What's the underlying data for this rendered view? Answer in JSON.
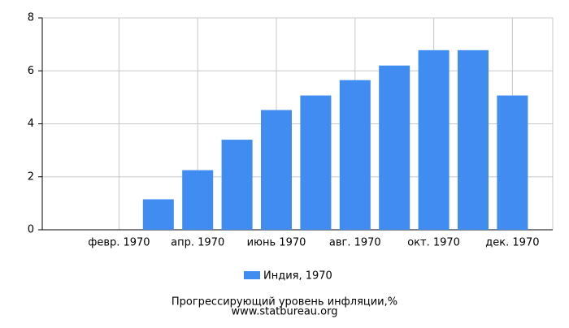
{
  "chart_data": {
    "type": "bar",
    "title": "Прогрессирующий уровень инфляции,%",
    "subtitle": "www.statbureau.org",
    "categories": [
      null,
      "февр. 1970",
      null,
      "апр. 1970",
      null,
      "июнь 1970",
      null,
      "авг. 1970",
      null,
      "окт. 1970",
      null,
      "дек. 1970"
    ],
    "series": [
      {
        "name": "Индия, 1970",
        "color": "#418cf0",
        "values": [
          0,
          0,
          1.15,
          2.25,
          3.4,
          4.52,
          5.07,
          5.65,
          6.2,
          6.78,
          6.78,
          5.07
        ]
      }
    ],
    "ylim": [
      0,
      8
    ],
    "yticks": [
      0,
      2,
      4,
      6,
      8
    ],
    "grid": true
  }
}
